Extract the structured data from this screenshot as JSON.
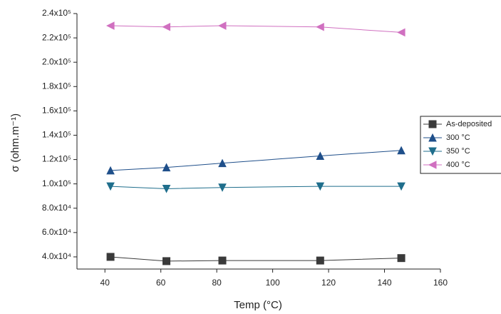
{
  "chart_data": {
    "type": "line",
    "x_label": "Temp (°C)",
    "y_label": "σ (ohm.m⁻¹)",
    "x": [
      42,
      62,
      82,
      117,
      146
    ],
    "series": [
      {
        "name": "As-deposited",
        "color": "#3a3a3a",
        "marker": "square",
        "values": [
          40000,
          36500,
          37000,
          37000,
          39000
        ]
      },
      {
        "name": "300 °C",
        "color": "#1f4f8a",
        "marker": "triangle-up",
        "values": [
          111000,
          113500,
          117000,
          123000,
          127500
        ]
      },
      {
        "name": "350 °C",
        "color": "#1f6e8c",
        "marker": "triangle-down",
        "values": [
          98000,
          96000,
          97000,
          98000,
          98000
        ]
      },
      {
        "name": "400 °C",
        "color": "#d070c0",
        "marker": "triangle-left",
        "values": [
          230000,
          229000,
          230000,
          229000,
          224500
        ]
      }
    ],
    "xlim": [
      30,
      160
    ],
    "xticks": [
      40,
      60,
      80,
      100,
      120,
      140,
      160
    ],
    "ylim": [
      30000,
      240000
    ],
    "yticks": [
      {
        "value": 40000,
        "label": "4.0x10⁴"
      },
      {
        "value": 60000,
        "label": "6.0x10⁴"
      },
      {
        "value": 80000,
        "label": "8.0x10⁴"
      },
      {
        "value": 100000,
        "label": "1.0x10⁵"
      },
      {
        "value": 120000,
        "label": "1.2x10⁵"
      },
      {
        "value": 140000,
        "label": "1.4x10⁵"
      },
      {
        "value": 160000,
        "label": "1.6x10⁵"
      },
      {
        "value": 180000,
        "label": "1.8x10⁵"
      },
      {
        "value": 200000,
        "label": "2.0x10⁵"
      },
      {
        "value": 220000,
        "label": "2.2x10⁵"
      },
      {
        "value": 240000,
        "label": "2.4x10⁵"
      }
    ],
    "legend": "right"
  }
}
